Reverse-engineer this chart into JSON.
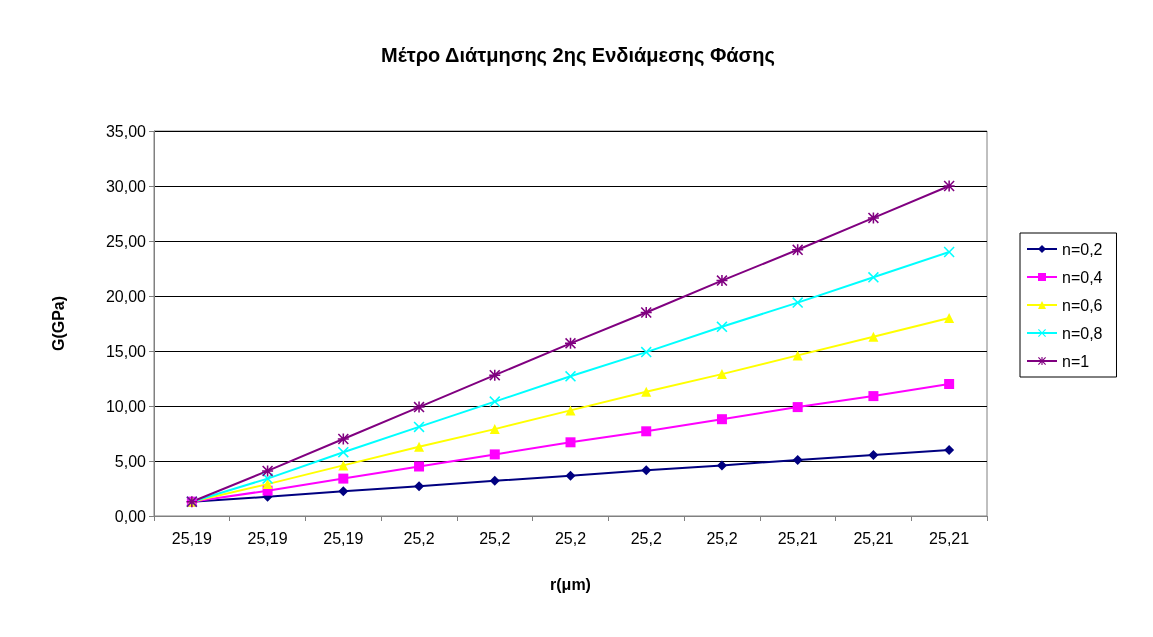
{
  "chart_data": {
    "type": "line",
    "title": "Μέτρο Διάτμησης 2ης Ενδιάμεσης Φάσης",
    "xlabel": "r(μm)",
    "ylabel": "G(GPa)",
    "categories": [
      "25,19",
      "25,19",
      "25,19",
      "25,2",
      "25,2",
      "25,2",
      "25,2",
      "25,2",
      "25,21",
      "25,21",
      "25,21"
    ],
    "ylim": [
      0,
      35
    ],
    "yticks": [
      {
        "value": 0,
        "label": "0,00"
      },
      {
        "value": 5,
        "label": "5,00"
      },
      {
        "value": 10,
        "label": "10,00"
      },
      {
        "value": 15,
        "label": "15,00"
      },
      {
        "value": 20,
        "label": "20,00"
      },
      {
        "value": 25,
        "label": "25,00"
      },
      {
        "value": 30,
        "label": "30,00"
      },
      {
        "value": 35,
        "label": "35,00"
      }
    ],
    "grid": "y",
    "legend": "right",
    "line_style": "solid",
    "series": [
      {
        "name": "n=0,2",
        "color": "#000080",
        "marker": "diamond",
        "values": [
          1.3,
          1.75,
          2.25,
          2.7,
          3.2,
          3.65,
          4.15,
          4.6,
          5.1,
          5.55,
          6.0
        ]
      },
      {
        "name": "n=0,4",
        "color": "#ff00ff",
        "marker": "square",
        "values": [
          1.3,
          2.3,
          3.4,
          4.5,
          5.6,
          6.7,
          7.7,
          8.8,
          9.9,
          10.9,
          12.0
        ]
      },
      {
        "name": "n=0,6",
        "color": "#ffff00",
        "marker": "triangle",
        "values": [
          1.3,
          2.9,
          4.6,
          6.3,
          7.9,
          9.6,
          11.3,
          12.9,
          14.6,
          16.3,
          18.0
        ]
      },
      {
        "name": "n=0,8",
        "color": "#00ffff",
        "marker": "cross",
        "values": [
          1.3,
          3.4,
          5.8,
          8.1,
          10.4,
          12.7,
          14.9,
          17.2,
          19.4,
          21.7,
          24.0
        ]
      },
      {
        "name": "n=1",
        "color": "#800080",
        "marker": "star",
        "values": [
          1.3,
          4.1,
          7.0,
          9.9,
          12.8,
          15.7,
          18.5,
          21.4,
          24.2,
          27.1,
          30.0
        ]
      }
    ]
  }
}
